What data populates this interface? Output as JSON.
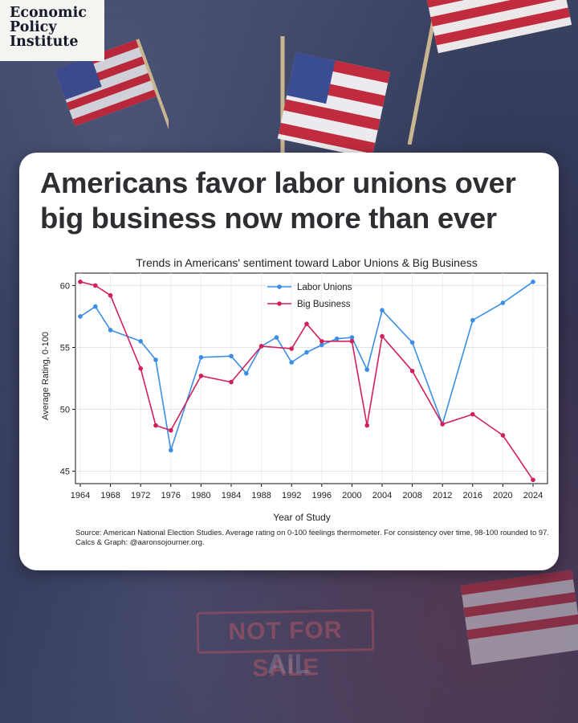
{
  "brand": {
    "line1": "Economic",
    "line2": "Policy",
    "line3": "Institute"
  },
  "headline": {
    "line1": "Americans favor labor unions over",
    "line2": "big business now more than ever"
  },
  "background_sign": {
    "text1": "NOT FOR SALE",
    "text2": "AIL"
  },
  "chart_data": {
    "type": "line",
    "title": "Trends in Americans' sentiment toward Labor Unions & Big Business",
    "xlabel": "Year of Study",
    "ylabel": "Average Rating, 0-100",
    "xlim": [
      1964,
      2024
    ],
    "ylim": [
      44,
      61
    ],
    "x_ticks": [
      1964,
      1968,
      1972,
      1976,
      1980,
      1984,
      1988,
      1992,
      1996,
      2000,
      2004,
      2008,
      2012,
      2016,
      2020,
      2024
    ],
    "y_ticks": [
      45,
      50,
      55,
      60
    ],
    "grid": true,
    "legend_position": "top-center",
    "series": [
      {
        "name": "Labor Unions",
        "color": "#3a8ee6",
        "points": [
          [
            1964,
            57.5
          ],
          [
            1966,
            58.3
          ],
          [
            1968,
            56.4
          ],
          [
            1972,
            55.5
          ],
          [
            1974,
            54.0
          ],
          [
            1976,
            46.7
          ],
          [
            1980,
            54.2
          ],
          [
            1984,
            54.3
          ],
          [
            1986,
            52.9
          ],
          [
            1988,
            55.1
          ],
          [
            1990,
            55.8
          ],
          [
            1992,
            53.8
          ],
          [
            1994,
            54.6
          ],
          [
            1996,
            55.2
          ],
          [
            1998,
            55.7
          ],
          [
            2000,
            55.8
          ],
          [
            2002,
            53.2
          ],
          [
            2004,
            58.0
          ],
          [
            2008,
            55.4
          ],
          [
            2012,
            48.8
          ],
          [
            2016,
            57.2
          ],
          [
            2020,
            58.6
          ],
          [
            2024,
            60.3
          ]
        ]
      },
      {
        "name": "Big Business",
        "color": "#d11f5c",
        "points": [
          [
            1964,
            60.3
          ],
          [
            1966,
            60.0
          ],
          [
            1968,
            59.2
          ],
          [
            1972,
            53.3
          ],
          [
            1974,
            48.7
          ],
          [
            1976,
            48.3
          ],
          [
            1980,
            52.7
          ],
          [
            1984,
            52.2
          ],
          [
            1988,
            55.1
          ],
          [
            1992,
            54.9
          ],
          [
            1994,
            56.9
          ],
          [
            1996,
            55.5
          ],
          [
            2000,
            55.5
          ],
          [
            2002,
            48.7
          ],
          [
            2004,
            55.9
          ],
          [
            2008,
            53.1
          ],
          [
            2012,
            48.8
          ],
          [
            2016,
            49.6
          ],
          [
            2020,
            47.9
          ],
          [
            2024,
            44.3
          ]
        ]
      }
    ],
    "source_note": "Source: American National Election Studies. Average rating on 0-100 feelings thermometer. For consistency over time, 98-100 rounded to 97.",
    "credit_note": "Calcs & Graph: @aaronsojourner.org."
  }
}
